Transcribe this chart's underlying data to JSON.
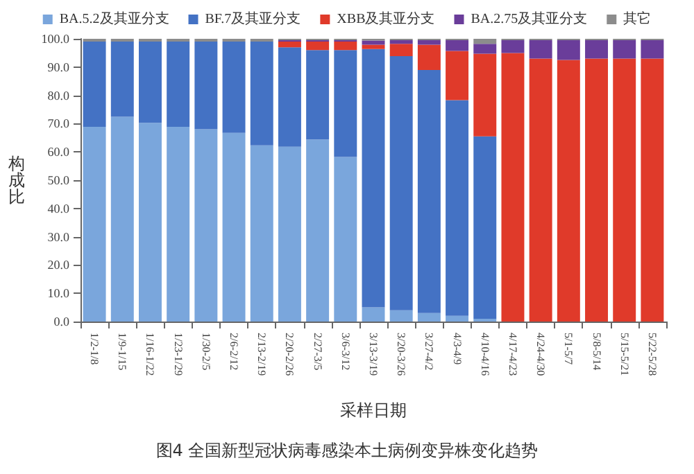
{
  "chart_data": {
    "type": "bar",
    "stacked": true,
    "title": "图4 全国新型冠状病毒感染本土病例变异株变化趋势",
    "xlabel": "采样日期",
    "ylabel": "构成比",
    "categories": [
      "1/2-1/8",
      "1/9-1/15",
      "1/16-1/22",
      "1/23-1/29",
      "1/30-2/5",
      "2/6-2/12",
      "2/13-2/19",
      "2/20-2/26",
      "2/27-3/5",
      "3/6-3/12",
      "3/13-3/19",
      "3/20-3/26",
      "3/27-4/2",
      "4/3-4/9",
      "4/10-4/16",
      "4/17-4/23",
      "4/24-4/30",
      "5/1-5/7",
      "5/8-5/14",
      "5/15-5/21",
      "5/22-5/28"
    ],
    "series": [
      {
        "name": "BA.5.2及其亚分支",
        "color": "#7aa6dc",
        "values": [
          68.9,
          72.4,
          70.3,
          68.9,
          68.0,
          66.7,
          62.3,
          61.8,
          64.4,
          58.2,
          5,
          4,
          3,
          2,
          1,
          0,
          0,
          0,
          0,
          0,
          0
        ]
      },
      {
        "name": "BF.7及其亚分支",
        "color": "#4472c4",
        "values": [
          30.1,
          26.6,
          28.7,
          30.1,
          31.0,
          32.3,
          36.7,
          35.2,
          31.6,
          37.8,
          91.4,
          89.9,
          86.0,
          76.3,
          64.5,
          0,
          0,
          0,
          0,
          0,
          0
        ]
      },
      {
        "name": "XBB及其亚分支",
        "color": "#e03a2a",
        "values": [
          0,
          0,
          0,
          0,
          0,
          0,
          0,
          2.0,
          3.0,
          3.0,
          1.5,
          4.3,
          8.9,
          17.4,
          29.2,
          95.0,
          93.0,
          92.5,
          93.0,
          93.0,
          93.0
        ]
      },
      {
        "name": "BA.2.75及其亚分支",
        "color": "#6a3d9a",
        "values": [
          0,
          0,
          0,
          0,
          0,
          0,
          0,
          0.5,
          0.5,
          0.5,
          1.5,
          1.3,
          1.6,
          3.8,
          3.5,
          4.5,
          6.5,
          7.0,
          6.5,
          6.5,
          6.5
        ]
      },
      {
        "name": "其它",
        "color": "#8c8c8c",
        "values": [
          1.0,
          1.0,
          1.0,
          1.0,
          1.0,
          1.0,
          1.0,
          0.5,
          0.5,
          0.5,
          0.6,
          0.5,
          0.5,
          0.5,
          1.8,
          0.5,
          0.5,
          0.5,
          0.5,
          0.5,
          0.5
        ]
      }
    ],
    "ylim": [
      0,
      100
    ],
    "yticks": [
      {
        "value": 0,
        "label": "0.0"
      },
      {
        "value": 10,
        "label": "10.0"
      },
      {
        "value": 20,
        "label": "20.0"
      },
      {
        "value": 30,
        "label": "30.0"
      },
      {
        "value": 40,
        "label": "40.0"
      },
      {
        "value": 50,
        "label": "50.0"
      },
      {
        "value": 60,
        "label": "60.0"
      },
      {
        "value": 70,
        "label": "70.0"
      },
      {
        "value": 80,
        "label": "80.0"
      },
      {
        "value": 90,
        "label": "90.0"
      },
      {
        "value": 100,
        "label": "100.0"
      }
    ],
    "grid": false,
    "legend": "top"
  }
}
